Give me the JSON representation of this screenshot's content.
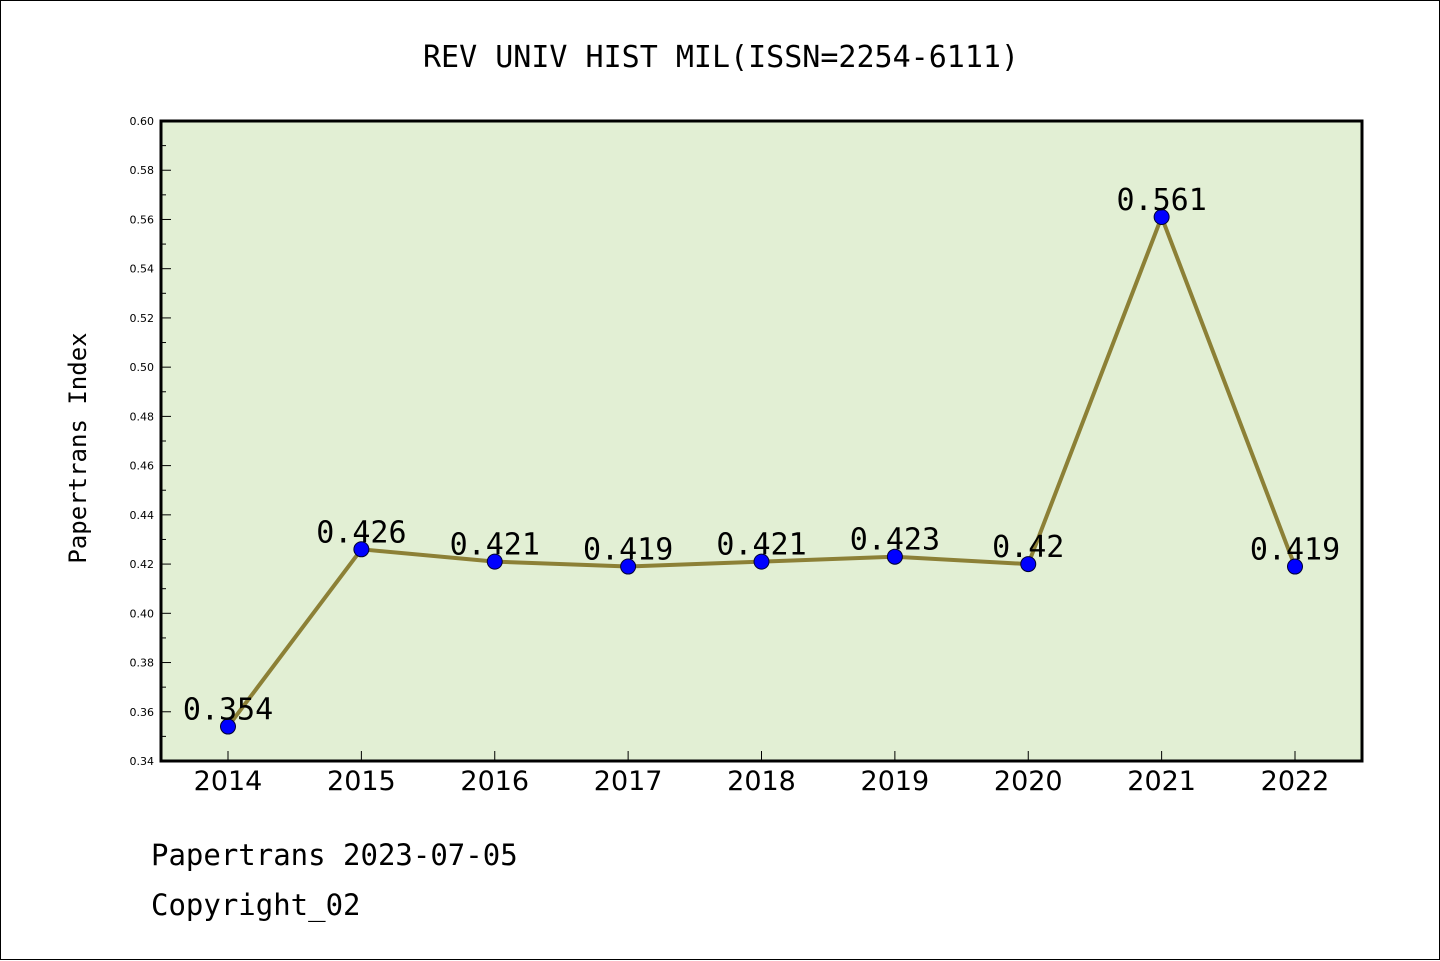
{
  "chart_data": {
    "type": "line",
    "title": "REV UNIV HIST MIL(ISSN=2254-6111)",
    "xlabel": "",
    "ylabel": "Papertrans Index",
    "categories": [
      "2014",
      "2015",
      "2016",
      "2017",
      "2018",
      "2019",
      "2020",
      "2021",
      "2022"
    ],
    "series": [
      {
        "values": [
          0.354,
          0.426,
          0.421,
          0.419,
          0.421,
          0.423,
          0.42,
          0.561,
          0.419
        ],
        "labels": [
          "0.354",
          "0.426",
          "0.421",
          "0.419",
          "0.421",
          "0.423",
          "0.42",
          "0.561",
          "0.419"
        ]
      }
    ],
    "ylim": [
      0.34,
      0.6
    ],
    "yticks": [
      "0.34",
      "0.36",
      "0.38",
      "0.40",
      "0.42",
      "0.44",
      "0.46",
      "0.48",
      "0.50",
      "0.52",
      "0.54",
      "0.56",
      "0.58",
      "0.60"
    ],
    "grid": false,
    "legend": "none"
  },
  "footer": {
    "line1": "Papertrans 2023-07-05",
    "line2": "Copyright_02"
  },
  "colors": {
    "plot_background": "#e2efd4",
    "line": "#8c8036",
    "marker": "#0000ff"
  }
}
